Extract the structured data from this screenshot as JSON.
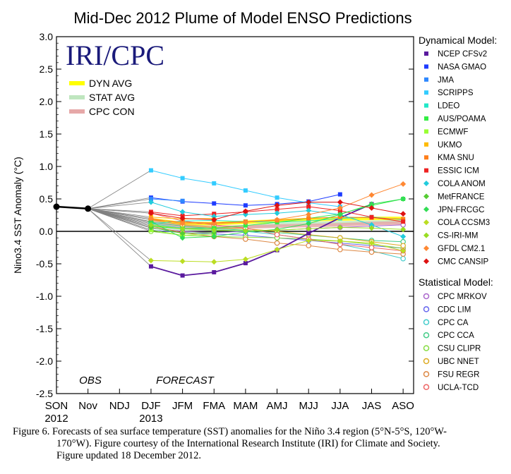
{
  "figure": {
    "title": "Mid-Dec 2012 Plume of Model ENSO Predictions",
    "logo_text": "IRI/CPC",
    "caption_lines": [
      "Figure 6. Forecasts of sea surface temperature (SST) anomalies  for the Niño 3.4 region  (5°N-5°S, 120°W-",
      "170°W).  Figure courtesy of the International Research Institute (IRI) for Climate and Society.",
      "Figure updated 18 December 2012."
    ]
  },
  "chart_data": {
    "type": "line",
    "title": "Mid-Dec 2012 Plume of Model ENSO Predictions",
    "ylabel": "Nino3.4 SST Anomaly (°C)",
    "ylim": [
      -2.5,
      3.0
    ],
    "yticks": [
      "3.0",
      "2.5",
      "2.0",
      "1.5",
      "1.0",
      "0.5",
      "0.0",
      "-0.5",
      "-1.0",
      "-1.5",
      "-2.0",
      "-2.5"
    ],
    "ytick_values": [
      3.0,
      2.5,
      2.0,
      1.5,
      1.0,
      0.5,
      0.0,
      -0.5,
      -1.0,
      -1.5,
      -2.0,
      -2.5
    ],
    "categories": [
      "SON",
      "Nov",
      "NDJ",
      "DJF",
      "JFM",
      "FMA",
      "MAM",
      "AMJ",
      "MJJ",
      "JJA",
      "JAS",
      "ASO"
    ],
    "year_labels": [
      {
        "category": "SON",
        "text": "2012"
      },
      {
        "category": "DJF",
        "text": "2013"
      }
    ],
    "region_labels": {
      "obs": "OBS",
      "forecast": "FORECAST"
    },
    "observed": {
      "categories": [
        "SON",
        "Nov"
      ],
      "values": [
        0.38,
        0.35
      ],
      "color": "#000000"
    },
    "legend_avg": [
      {
        "name": "DYN AVG",
        "color": "#ffff00",
        "values": [
          0.18,
          0.12,
          0.12,
          0.14,
          0.16,
          0.18,
          0.19,
          0.2,
          0.2
        ]
      },
      {
        "name": "STAT AVG",
        "color": "#bfe6bf",
        "values": [
          0.1,
          0.03,
          0.04,
          0.07,
          0.1,
          0.12,
          0.13,
          0.14,
          0.15
        ]
      },
      {
        "name": "CPC CON",
        "color": "#e6a8a8",
        "values": [
          0.15,
          0.08,
          0.06,
          0.07,
          0.08,
          0.09,
          0.1,
          0.12,
          0.13
        ]
      }
    ],
    "legend_dynamical_title": "Dynamical Model:",
    "legend_statistical_title": "Statistical Model:",
    "dynamical": [
      {
        "name": "NCEP CFSv2",
        "color": "#5a1a9e",
        "values": [
          -0.54,
          -0.68,
          -0.63,
          -0.49,
          -0.29,
          -0.03,
          0.21,
          0.42,
          null
        ]
      },
      {
        "name": "NASA GMAO",
        "color": "#1e3cff",
        "values": [
          0.52,
          0.46,
          0.43,
          0.4,
          0.42,
          0.46,
          0.57,
          null,
          null
        ]
      },
      {
        "name": "JMA",
        "color": "#2e88ff",
        "values": [
          0.5,
          0.47,
          null,
          null,
          null,
          null,
          null,
          null,
          null
        ]
      },
      {
        "name": "SCRIPPS",
        "color": "#33ccff",
        "values": [
          0.94,
          0.82,
          0.74,
          0.63,
          0.52,
          0.44,
          0.38,
          null,
          null
        ]
      },
      {
        "name": "LDEO",
        "color": "#22e8c8",
        "values": [
          0.12,
          0.16,
          0.17,
          0.15,
          0.14,
          0.16,
          0.2,
          0.22,
          0.18
        ]
      },
      {
        "name": "AUS/POAMA",
        "color": "#33ee44",
        "values": [
          0.08,
          0.04,
          0.05,
          0.09,
          0.14,
          0.2,
          0.27,
          0.4,
          0.5
        ]
      },
      {
        "name": "ECMWF",
        "color": "#99ff33",
        "values": [
          0.02,
          -0.06,
          -0.04,
          null,
          null,
          null,
          null,
          null,
          null
        ]
      },
      {
        "name": "UKMO",
        "color": "#ffbb00",
        "values": [
          0.22,
          0.19,
          0.2,
          null,
          null,
          null,
          null,
          null,
          null
        ]
      },
      {
        "name": "KMA SNU",
        "color": "#ff7f1a",
        "values": [
          0.18,
          0.14,
          0.13,
          0.15,
          0.17,
          0.2,
          0.22,
          0.21,
          0.19
        ]
      },
      {
        "name": "ESSIC ICM",
        "color": "#ee2222",
        "values": [
          0.3,
          0.24,
          0.27,
          0.3,
          0.34,
          0.38,
          0.32,
          0.22,
          0.15
        ]
      },
      {
        "name": "COLA ANOM",
        "color": "#22ccdd",
        "values": [
          0.45,
          0.3,
          0.23,
          0.26,
          0.28,
          0.32,
          0.26,
          0.1,
          -0.08
        ]
      },
      {
        "name": "MetFRANCE",
        "color": "#55cc33",
        "values": [
          0.06,
          -0.03,
          -0.02,
          null,
          null,
          null,
          null,
          null,
          null
        ]
      },
      {
        "name": "JPN-FRCGC",
        "color": "#33dd55",
        "values": [
          0.15,
          -0.1,
          -0.08,
          -0.01,
          0.03,
          0.12,
          0.26,
          0.42,
          0.5
        ]
      },
      {
        "name": "COLA CCSM3",
        "color": "#bbdd22",
        "values": [
          -0.45,
          -0.46,
          -0.47,
          -0.43,
          -0.28,
          -0.14,
          -0.15,
          -0.18,
          -0.3
        ]
      },
      {
        "name": "CS-IRI-MM",
        "color": "#99dd22",
        "values": [
          0.1,
          0.04,
          0.02,
          0.01,
          0.02,
          0.04,
          0.06,
          0.05,
          0.03
        ]
      },
      {
        "name": "GFDL CM2.1",
        "color": "#ff8833",
        "values": [
          0.2,
          0.12,
          0.12,
          0.14,
          0.18,
          0.26,
          0.36,
          0.56,
          0.73
        ]
      },
      {
        "name": "CMC CANSIP",
        "color": "#dd1111",
        "values": [
          0.28,
          0.2,
          0.18,
          0.31,
          0.4,
          0.45,
          0.45,
          0.36,
          0.27
        ]
      }
    ],
    "statistical": [
      {
        "name": "CPC MRKOV",
        "color": "#aa66cc",
        "values": [
          0.05,
          0.0,
          -0.02,
          0.0,
          0.02,
          0.04,
          0.06,
          0.08,
          0.1
        ]
      },
      {
        "name": "CDC LIM",
        "color": "#6666ee",
        "values": [
          0.02,
          -0.02,
          -0.04,
          -0.06,
          -0.1,
          -0.14,
          -0.18,
          -0.22,
          -0.26
        ]
      },
      {
        "name": "CPC CA",
        "color": "#44cccc",
        "values": [
          0.12,
          0.05,
          0.02,
          0.0,
          -0.05,
          -0.12,
          -0.2,
          -0.3,
          -0.42
        ]
      },
      {
        "name": "CPC CCA",
        "color": "#44cc88",
        "values": [
          0.14,
          0.08,
          0.04,
          0.02,
          -0.02,
          -0.06,
          -0.1,
          -0.14,
          -0.16
        ]
      },
      {
        "name": "CSU CLIPR",
        "color": "#88dd44",
        "values": [
          0.0,
          -0.06,
          -0.08,
          -0.09,
          -0.1,
          -0.12,
          -0.15,
          -0.2,
          -0.26
        ]
      },
      {
        "name": "UBC NNET",
        "color": "#ddaa22",
        "values": [
          0.18,
          0.1,
          0.06,
          0.04,
          0.0,
          -0.05,
          -0.1,
          -0.16,
          -0.22
        ]
      },
      {
        "name": "FSU REGR",
        "color": "#dd8844",
        "values": [
          0.08,
          -0.02,
          -0.08,
          -0.12,
          -0.18,
          -0.22,
          -0.28,
          -0.32,
          -0.35
        ]
      },
      {
        "name": "UCLA-TCD",
        "color": "#ee6666",
        "values": [
          0.28,
          0.16,
          0.1,
          0.05,
          -0.05,
          -0.12,
          -0.2,
          -0.25,
          -0.3
        ]
      }
    ]
  }
}
